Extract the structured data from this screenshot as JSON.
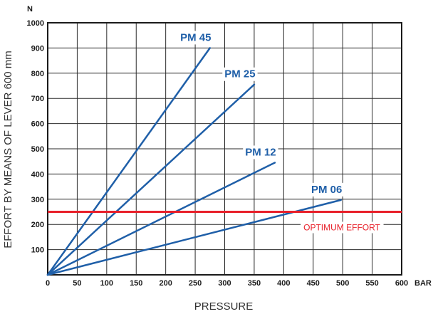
{
  "chart_data": {
    "type": "line",
    "xlabel": "PRESSURE",
    "ylabel": "EFFORT BY MEANS OF LEVER 600 mm",
    "x_unit": "BAR",
    "y_unit": "N",
    "xlim": [
      0,
      600
    ],
    "ylim": [
      0,
      1000
    ],
    "xticks": [
      0,
      50,
      100,
      150,
      200,
      250,
      300,
      350,
      400,
      450,
      500,
      550,
      600
    ],
    "yticks": [
      100,
      200,
      300,
      400,
      500,
      600,
      700,
      800,
      900,
      1000
    ],
    "grid": true,
    "series": [
      {
        "name": "PM 45",
        "x": [
          0,
          275
        ],
        "y": [
          0,
          900
        ]
      },
      {
        "name": "PM 25",
        "x": [
          0,
          350
        ],
        "y": [
          0,
          755
        ]
      },
      {
        "name": "PM 12",
        "x": [
          0,
          385
        ],
        "y": [
          0,
          445
        ]
      },
      {
        "name": "PM 06",
        "x": [
          0,
          497
        ],
        "y": [
          0,
          297
        ]
      }
    ],
    "reference_line": {
      "label": "OPTIMUM EFFORT",
      "y": 250
    },
    "colors": {
      "series": "#1f5fa8",
      "reference": "#e8202a",
      "grid": "#2a2a2a"
    }
  }
}
